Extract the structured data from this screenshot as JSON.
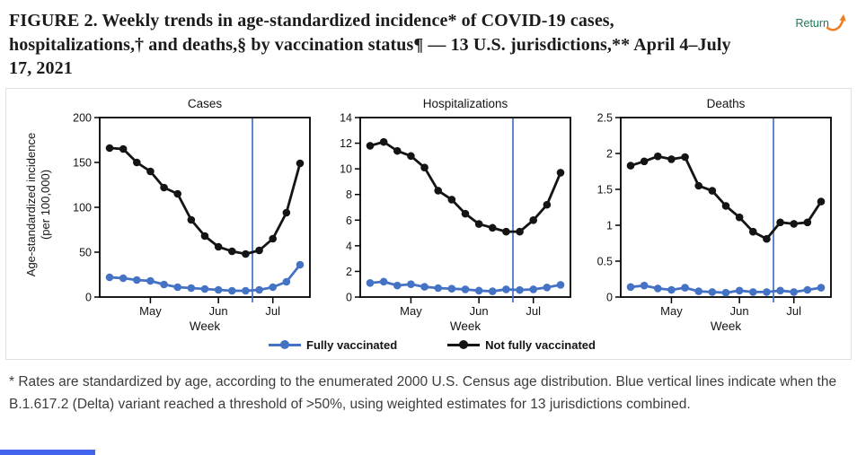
{
  "page": {
    "title": "FIGURE 2. Weekly trends in age-standardized incidence* of COVID-19 cases, hospitalizations,† and deaths,§ by vaccination status¶ — 13 U.S. jurisdictions,** April 4–July 17, 2021",
    "title_lines": [
      "FIGURE 2. Weekly trends in age-standardized incidence* of COVID-19 cases,",
      "hospitalizations,† and deaths,§ by vaccination status¶ — 13 U.S. jurisdictions,** April 4–July",
      "17, 2021"
    ],
    "return_label": "Return",
    "footnote": "* Rates are standardized by age, according to the enumerated 2000 U.S. Census age distribution. Blue vertical lines indicate when the B.1.617.2 (Delta) variant reached a threshold of >50%, using weighted estimates for 13 jurisdictions combined."
  },
  "colors": {
    "fully_vaccinated": "#4472c4",
    "not_fully_vaccinated": "#141414",
    "delta_line": "#4472c4",
    "return_text": "#1d7a52",
    "return_arrow": "#ee7f24",
    "bottom_bar": "#4263eb",
    "figure_border": "#e0e0e0"
  },
  "figure": {
    "ylabel_line1": "Age-standardized incidence",
    "ylabel_line2": "(per 100,000)"
  },
  "legend": {
    "items": [
      {
        "label": "Fully vaccinated",
        "color": "#4472c4"
      },
      {
        "label": "Not fully vaccinated",
        "color": "#141414"
      }
    ],
    "position": "bottom-center"
  },
  "chart_data": [
    {
      "type": "line",
      "title": "Cases",
      "xlabel": "Week",
      "ylabel": "Age-standardized incidence (per 100,000)",
      "ylim": [
        0,
        200
      ],
      "yticks": [
        "0",
        "50",
        "100",
        "150",
        "200"
      ],
      "n_points": 15,
      "x_tick_labels": [
        "May",
        "Jun",
        "Jul"
      ],
      "x_tick_positions": [
        3,
        8,
        12
      ],
      "delta_threshold_line_x": 10.5,
      "grid": false,
      "series": [
        {
          "name": "Fully vaccinated",
          "color": "#4472c4",
          "values": [
            22,
            21,
            19,
            18,
            14,
            11,
            10,
            9,
            8,
            7,
            7,
            8,
            11,
            17,
            36
          ]
        },
        {
          "name": "Not fully vaccinated",
          "color": "#141414",
          "values": [
            166,
            165,
            150,
            140,
            122,
            115,
            86,
            68,
            56,
            51,
            48,
            52,
            65,
            94,
            149
          ]
        }
      ]
    },
    {
      "type": "line",
      "title": "Hospitalizations",
      "xlabel": "Week",
      "ylabel": "Age-standardized incidence (per 100,000)",
      "ylim": [
        0,
        14
      ],
      "yticks": [
        "0",
        "2",
        "4",
        "6",
        "8",
        "10",
        "12",
        "14"
      ],
      "n_points": 15,
      "x_tick_labels": [
        "May",
        "Jun",
        "Jul"
      ],
      "x_tick_positions": [
        3,
        8,
        12
      ],
      "delta_threshold_line_x": 10.5,
      "grid": false,
      "series": [
        {
          "name": "Fully vaccinated",
          "color": "#4472c4",
          "values": [
            1.1,
            1.2,
            0.9,
            1.0,
            0.8,
            0.7,
            0.65,
            0.6,
            0.5,
            0.45,
            0.6,
            0.55,
            0.6,
            0.75,
            0.95
          ]
        },
        {
          "name": "Not fully vaccinated",
          "color": "#141414",
          "values": [
            11.8,
            12.1,
            11.4,
            11.0,
            10.1,
            8.3,
            7.6,
            6.5,
            5.7,
            5.4,
            5.1,
            5.1,
            6.0,
            7.2,
            9.7
          ]
        }
      ]
    },
    {
      "type": "line",
      "title": "Deaths",
      "xlabel": "Week",
      "ylabel": "Age-standardized incidence (per 100,000)",
      "ylim": [
        0,
        2.5
      ],
      "yticks": [
        "0",
        "0.5",
        "1",
        "1.5",
        "2",
        "2.5"
      ],
      "n_points": 15,
      "x_tick_labels": [
        "May",
        "Jun",
        "Jul"
      ],
      "x_tick_positions": [
        3,
        8,
        12
      ],
      "delta_threshold_line_x": 10.5,
      "grid": false,
      "series": [
        {
          "name": "Fully vaccinated",
          "color": "#4472c4",
          "values": [
            0.14,
            0.16,
            0.12,
            0.1,
            0.13,
            0.08,
            0.07,
            0.06,
            0.09,
            0.07,
            0.07,
            0.09,
            0.07,
            0.1,
            0.13
          ]
        },
        {
          "name": "Not fully vaccinated",
          "color": "#141414",
          "values": [
            1.83,
            1.89,
            1.96,
            1.92,
            1.95,
            1.55,
            1.48,
            1.27,
            1.11,
            0.91,
            0.81,
            1.04,
            1.02,
            1.04,
            1.33
          ]
        }
      ]
    }
  ]
}
